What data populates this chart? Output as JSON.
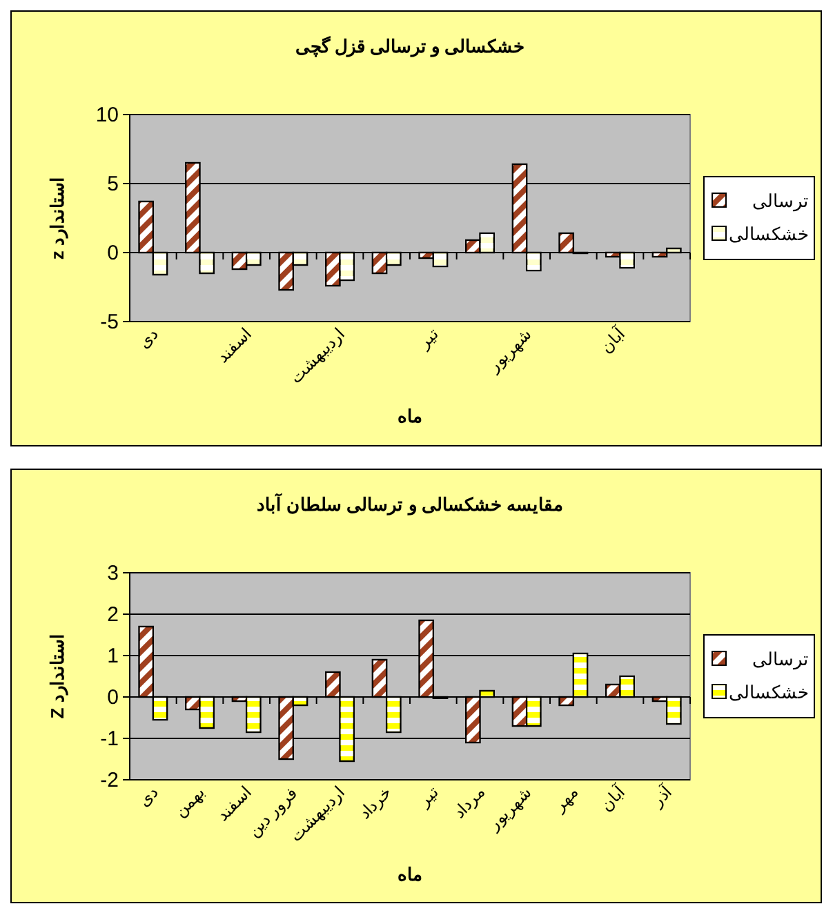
{
  "chart_data": [
    {
      "type": "bar",
      "title": "خشکسالی و ترسالی قزل گچی",
      "xlabel": "ماه",
      "ylabel": "استاندارد z",
      "categories": [
        "دی",
        null,
        "اسفند",
        null,
        "اردیبهشت",
        null,
        "تیر",
        null,
        "شهریور",
        null,
        "آبان",
        null
      ],
      "series": [
        {
          "name": "ترسالی",
          "color": "#a0401f",
          "values": [
            3.7,
            6.5,
            -1.2,
            -2.7,
            -2.4,
            -1.5,
            -0.4,
            0.9,
            6.4,
            1.4,
            -0.3,
            -0.3
          ]
        },
        {
          "name": "خشکسالی",
          "color": "#ffffcc",
          "values": [
            -1.6,
            -1.5,
            -0.9,
            -0.9,
            -2.0,
            -0.9,
            -1.0,
            1.4,
            -1.3,
            0,
            -1.1,
            0.3
          ]
        }
      ],
      "ylim": [
        -5,
        10
      ],
      "yticks": [
        -5,
        0,
        5,
        10
      ],
      "grid": "y",
      "legend": "right"
    },
    {
      "type": "bar",
      "title": "مقایسه خشکسالی و ترسالی سلطان آباد",
      "xlabel": "ماه",
      "ylabel": "استاندارد Z",
      "categories": [
        "دی",
        "بهمن",
        "اسفند",
        "فرور دین",
        "اردیبهشت",
        "خرداد",
        "تیر",
        "مرداد",
        "شهریور",
        "مهر",
        "آبان",
        "آذر"
      ],
      "series": [
        {
          "name": "ترسالی",
          "color": "#a0401f",
          "values": [
            1.7,
            -0.3,
            -0.1,
            -1.5,
            0.6,
            0.9,
            1.85,
            -1.1,
            -0.7,
            -0.2,
            0.3,
            -0.1
          ]
        },
        {
          "name": "خشکسالی",
          "color": "#ffff00",
          "values": [
            -0.55,
            -0.75,
            -0.85,
            -0.2,
            -1.55,
            -0.85,
            -0.03,
            0.15,
            -0.7,
            1.05,
            0.5,
            -0.65
          ]
        }
      ],
      "ylim": [
        -2,
        3
      ],
      "yticks": [
        -2,
        -1,
        0,
        1,
        2,
        3
      ],
      "grid": "y",
      "legend": "right"
    }
  ]
}
